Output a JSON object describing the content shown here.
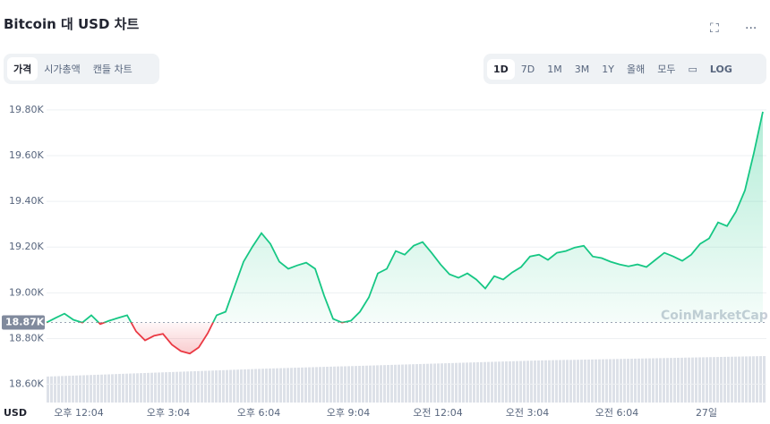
{
  "header": {
    "title": "Bitcoin 대 USD 차트"
  },
  "tabs": [
    "가격",
    "시가총액",
    "캔들 차트"
  ],
  "ranges": [
    "1D",
    "7D",
    "1M",
    "3M",
    "1Y",
    "올해",
    "모두"
  ],
  "log_label": "LOG",
  "chart_data": {
    "type": "line",
    "ylabel": "USD",
    "watermark": "CoinMarketCap",
    "colors": {
      "above": "#16c784",
      "below": "#ea3943"
    },
    "reference": {
      "value": 18870,
      "label": "18.87K"
    },
    "values": [
      18870,
      18890,
      18909,
      18882,
      18870,
      18902,
      18863,
      18878,
      18890,
      18902,
      18831,
      18792,
      18812,
      18820,
      18773,
      18745,
      18734,
      18761,
      18823,
      18902,
      18917,
      19027,
      19136,
      19202,
      19261,
      19214,
      19136,
      19105,
      19120,
      19132,
      19105,
      18988,
      18886,
      18870,
      18878,
      18917,
      18980,
      19085,
      19105,
      19183,
      19167,
      19206,
      19222,
      19175,
      19124,
      19081,
      19066,
      19085,
      19058,
      19019,
      19073,
      19058,
      19089,
      19113,
      19159,
      19167,
      19144,
      19175,
      19183,
      19198,
      19206,
      19159,
      19152,
      19136,
      19124,
      19116,
      19124,
      19113,
      19144,
      19175,
      19159,
      19140,
      19167,
      19214,
      19238,
      19308,
      19292,
      19355,
      19448,
      19612,
      19792
    ],
    "xlim": [
      0,
      80.4
    ],
    "xticks": [
      {
        "value": 3.6,
        "label": "오후 12:04"
      },
      {
        "value": 13.6,
        "label": "오후 3:04"
      },
      {
        "value": 23.7,
        "label": "오후 6:04"
      },
      {
        "value": 33.7,
        "label": "오후 9:04"
      },
      {
        "value": 43.7,
        "label": "오전 12:04"
      },
      {
        "value": 53.7,
        "label": "오전 3:04"
      },
      {
        "value": 63.7,
        "label": "오전 6:04"
      },
      {
        "value": 73.7,
        "label": "27일"
      }
    ],
    "ylim": [
      18520,
      19870
    ],
    "yticks": [
      {
        "value": 18600,
        "label": "18.60K"
      },
      {
        "value": 18800,
        "label": "18.80K"
      },
      {
        "value": 19000,
        "label": "19.00K"
      },
      {
        "value": 19200,
        "label": "19.20K"
      },
      {
        "value": 19400,
        "label": "19.40K"
      },
      {
        "value": 19600,
        "label": "19.60K"
      },
      {
        "value": 19800,
        "label": "19.80K"
      }
    ],
    "grid": true
  }
}
